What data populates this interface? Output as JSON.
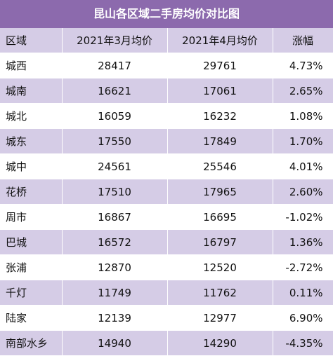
{
  "title": "昆山各区域二手房均价对比图",
  "headers": [
    "区域",
    "2021年3月均价",
    "2021年4月均价",
    "涨幅"
  ],
  "rows": [
    [
      "城西",
      "28417",
      "29761",
      "4.73%"
    ],
    [
      "城南",
      "16621",
      "17061",
      "2.65%"
    ],
    [
      "城北",
      "16059",
      "16232",
      "1.08%"
    ],
    [
      "城东",
      "17550",
      "17849",
      "1.70%"
    ],
    [
      "城中",
      "24561",
      "25546",
      "4.01%"
    ],
    [
      "花桥",
      "17510",
      "17965",
      "2.60%"
    ],
    [
      "周市",
      "16867",
      "16695",
      "-1.02%"
    ],
    [
      "巴城",
      "16572",
      "16797",
      "1.36%"
    ],
    [
      "张浦",
      "12870",
      "12520",
      "-2.72%"
    ],
    [
      "千灯",
      "11749",
      "11762",
      "0.11%"
    ],
    [
      "陆家",
      "12139",
      "12977",
      "6.90%"
    ],
    [
      "南部水乡",
      "14940",
      "14290",
      "-4.35%"
    ]
  ],
  "colors": {
    "title_bg": "#8c6aad",
    "band_bg": "#d5cce6"
  }
}
